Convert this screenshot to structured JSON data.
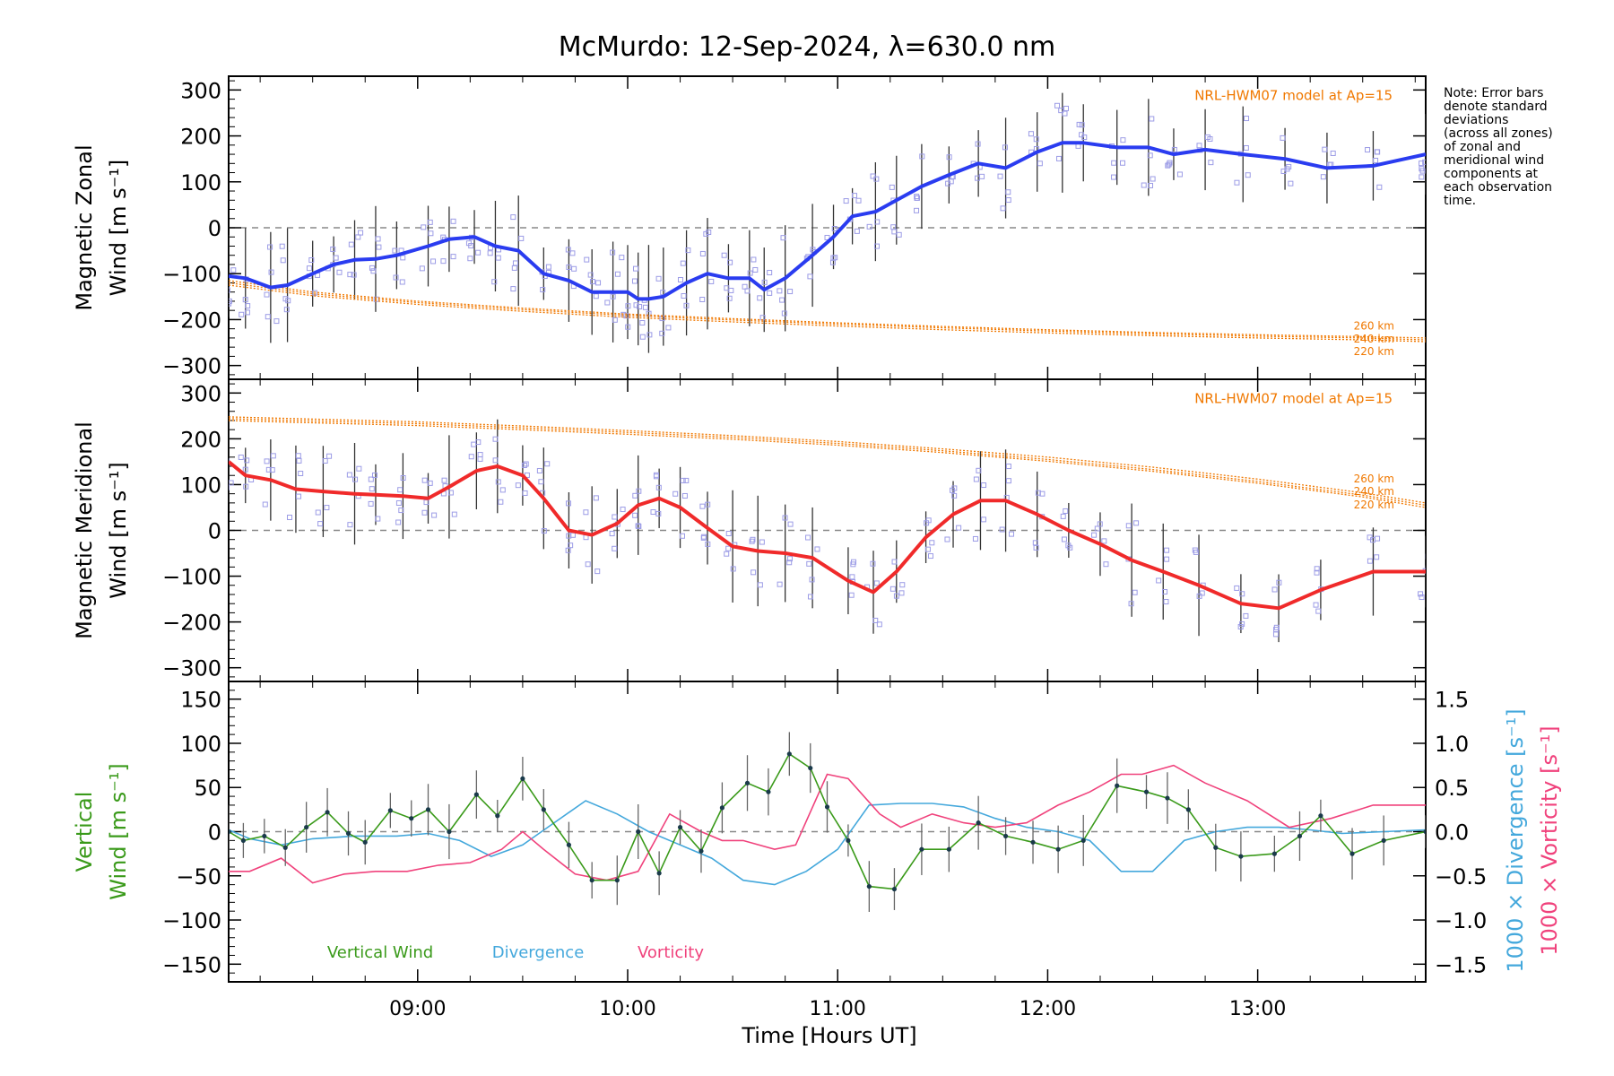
{
  "title": "McMurdo: 12-Sep-2024, λ=630.0 nm",
  "note": [
    "Note: Error bars",
    "denote standard",
    "deviations",
    "(across all zones)",
    "of zonal and",
    "meridional wind",
    "components at",
    "each observation",
    "time."
  ],
  "colors": {
    "zonal": "#2a3cf0",
    "meridional": "#f02a2a",
    "model": "#f07800",
    "vertical": "#3a9a1a",
    "divergence": "#44a8dc",
    "vorticity": "#f0427c",
    "zero_line": "#888888",
    "error_bar": "#333333",
    "zone_points": "#9c9ce6"
  },
  "xaxis": {
    "label": "Time [Hours UT]",
    "range": [
      8.1,
      13.8
    ],
    "ticks": [
      9,
      10,
      11,
      12,
      13
    ],
    "ticklabels": [
      "09:00",
      "10:00",
      "11:00",
      "12:00",
      "13:00"
    ]
  },
  "panels": {
    "zonal": {
      "ylabel": [
        "Magnetic Zonal",
        "Wind [m s⁻¹]"
      ],
      "ylim": [
        -330,
        330
      ],
      "yticks": [
        300,
        200,
        100,
        0,
        -100,
        -200,
        -300
      ],
      "model_label": "NRL-HWM07 model at Ap=15",
      "altitude_labels": [
        "260 km",
        "240 km",
        "220 km"
      ]
    },
    "meridional": {
      "ylabel": [
        "Magnetic Meridional",
        "Wind [m s⁻¹]"
      ],
      "ylim": [
        -330,
        330
      ],
      "yticks": [
        300,
        200,
        100,
        0,
        -100,
        -200,
        -300
      ],
      "model_label": "NRL-HWM07 model at Ap=15",
      "altitude_labels": [
        "260 km",
        "240 km",
        "220 km"
      ]
    },
    "vertical": {
      "ylabel": [
        "Vertical",
        "Wind [m s⁻¹]"
      ],
      "ylim": [
        -170,
        170
      ],
      "yticks": [
        150,
        100,
        50,
        0,
        -50,
        -100,
        -150
      ],
      "right_ylim": [
        -1.7,
        1.7
      ],
      "right_yticks": [
        1.5,
        1.0,
        0.5,
        0.0,
        -0.5,
        -1.0,
        -1.5
      ],
      "right_ylabel_divergence": "1000 × Divergence [s⁻¹]",
      "right_ylabel_vorticity": "1000 × Vorticity [s⁻¹]",
      "legend": [
        "Vertical Wind",
        "Divergence",
        "Vorticity"
      ]
    }
  },
  "chart_data": [
    {
      "type": "line",
      "title": "McMurdo: 12-Sep-2024, λ=630.0 nm",
      "ylabel": "Magnetic Zonal Wind [m s⁻¹]",
      "xlabel": "",
      "ylim": [
        -330,
        330
      ],
      "series": [
        {
          "x": [
            8.1,
            8.18,
            8.3,
            8.38,
            8.5,
            8.6,
            8.7,
            8.8,
            8.9,
            9.05,
            9.15,
            9.27,
            9.37,
            9.48,
            9.6,
            9.72,
            9.83,
            9.93,
            10.0,
            10.05,
            10.1,
            10.17,
            10.28,
            10.38,
            10.48,
            10.58,
            10.65,
            10.75,
            10.88,
            10.98,
            11.07,
            11.18,
            11.28,
            11.4,
            11.53,
            11.67,
            11.8,
            11.95,
            12.07,
            12.17,
            12.33,
            12.48,
            12.6,
            12.75,
            12.93,
            13.13,
            13.33,
            13.55,
            13.8
          ],
          "values": [
            -105,
            -110,
            -130,
            -125,
            -100,
            -80,
            -70,
            -68,
            -60,
            -40,
            -25,
            -20,
            -40,
            -50,
            -100,
            -115,
            -140,
            -140,
            -140,
            -155,
            -155,
            -150,
            -120,
            -100,
            -110,
            -110,
            -135,
            -110,
            -60,
            -20,
            25,
            35,
            60,
            90,
            115,
            140,
            130,
            165,
            185,
            185,
            175,
            175,
            160,
            170,
            160,
            150,
            130,
            135,
            160
          ]
        },
        {
          "name": "260 km",
          "x": [
            8.1,
            8.5,
            9.0,
            9.5,
            10.0,
            10.5,
            11.0,
            11.5,
            12.0,
            12.5,
            13.0,
            13.5,
            13.8
          ],
          "values": [
            -115,
            -140,
            -160,
            -175,
            -188,
            -198,
            -207,
            -215,
            -222,
            -228,
            -233,
            -237,
            -240
          ]
        },
        {
          "name": "240 km",
          "x": [
            8.1,
            8.5,
            9.0,
            9.5,
            10.0,
            10.5,
            11.0,
            11.5,
            12.0,
            12.5,
            13.0,
            13.5,
            13.8
          ],
          "values": [
            -120,
            -144,
            -163,
            -178,
            -191,
            -201,
            -210,
            -218,
            -225,
            -231,
            -236,
            -240,
            -244
          ]
        },
        {
          "name": "220 km",
          "x": [
            8.1,
            8.5,
            9.0,
            9.5,
            10.0,
            10.5,
            11.0,
            11.5,
            12.0,
            12.5,
            13.0,
            13.5,
            13.8
          ],
          "values": [
            -125,
            -148,
            -167,
            -182,
            -195,
            -205,
            -214,
            -222,
            -229,
            -235,
            -240,
            -244,
            -248
          ]
        }
      ]
    },
    {
      "type": "line",
      "title": "",
      "ylabel": "Magnetic Meridional Wind [m s⁻¹]",
      "xlabel": "",
      "ylim": [
        -330,
        330
      ],
      "series": [
        {
          "x": [
            8.1,
            8.18,
            8.3,
            8.42,
            8.55,
            8.7,
            8.8,
            8.93,
            9.05,
            9.15,
            9.28,
            9.38,
            9.5,
            9.6,
            9.72,
            9.83,
            9.95,
            10.05,
            10.15,
            10.25,
            10.38,
            10.5,
            10.62,
            10.75,
            10.88,
            11.05,
            11.17,
            11.28,
            11.42,
            11.55,
            11.68,
            11.8,
            11.95,
            12.1,
            12.25,
            12.4,
            12.55,
            12.72,
            12.92,
            13.1,
            13.3,
            13.55,
            13.8
          ],
          "values": [
            150,
            120,
            110,
            90,
            85,
            80,
            78,
            75,
            70,
            95,
            130,
            140,
            120,
            70,
            0,
            -10,
            15,
            55,
            70,
            50,
            5,
            -35,
            -45,
            -50,
            -60,
            -110,
            -135,
            -90,
            -15,
            35,
            65,
            65,
            35,
            0,
            -30,
            -65,
            -90,
            -120,
            -160,
            -170,
            -130,
            -90,
            -90
          ]
        },
        {
          "name": "260 km",
          "x": [
            8.1,
            8.5,
            9.0,
            9.5,
            10.0,
            10.5,
            11.0,
            11.5,
            12.0,
            12.5,
            13.0,
            13.5,
            13.8
          ],
          "values": [
            248,
            243,
            237,
            228,
            218,
            207,
            194,
            178,
            160,
            138,
            112,
            82,
            60
          ]
        },
        {
          "name": "240 km",
          "x": [
            8.1,
            8.5,
            9.0,
            9.5,
            10.0,
            10.5,
            11.0,
            11.5,
            12.0,
            12.5,
            13.0,
            13.5,
            13.8
          ],
          "values": [
            244,
            239,
            233,
            224,
            214,
            203,
            190,
            174,
            155,
            133,
            107,
            77,
            55
          ]
        },
        {
          "name": "220 km",
          "x": [
            8.1,
            8.5,
            9.0,
            9.5,
            10.0,
            10.5,
            11.0,
            11.5,
            12.0,
            12.5,
            13.0,
            13.5,
            13.8
          ],
          "values": [
            240,
            235,
            229,
            220,
            210,
            199,
            186,
            170,
            151,
            129,
            103,
            73,
            50
          ]
        }
      ]
    },
    {
      "type": "line",
      "title": "",
      "xlabel": "Time [Hours UT]",
      "ylabel": "Vertical Wind [m s⁻¹]",
      "ylim": [
        -170,
        170
      ],
      "series": [
        {
          "name": "Vertical Wind",
          "x": [
            8.1,
            8.17,
            8.27,
            8.37,
            8.47,
            8.57,
            8.67,
            8.75,
            8.87,
            8.97,
            9.05,
            9.15,
            9.28,
            9.38,
            9.5,
            9.6,
            9.72,
            9.83,
            9.95,
            10.05,
            10.15,
            10.25,
            10.35,
            10.45,
            10.57,
            10.67,
            10.77,
            10.87,
            10.95,
            11.05,
            11.15,
            11.27,
            11.4,
            11.53,
            11.67,
            11.8,
            11.93,
            12.05,
            12.17,
            12.33,
            12.47,
            12.57,
            12.67,
            12.8,
            12.92,
            13.08,
            13.2,
            13.3,
            13.45,
            13.6,
            13.8
          ],
          "values": [
            0,
            -10,
            -5,
            -18,
            5,
            22,
            -2,
            -12,
            24,
            15,
            25,
            0,
            42,
            18,
            60,
            25,
            -15,
            -55,
            -55,
            0,
            -47,
            5,
            -22,
            27,
            55,
            45,
            88,
            72,
            28,
            -10,
            -62,
            -65,
            -20,
            -20,
            10,
            -5,
            -12,
            -20,
            -10,
            52,
            45,
            38,
            25,
            -18,
            -28,
            -25,
            -5,
            18,
            -25,
            -10,
            0
          ]
        },
        {
          "name": "Divergence",
          "x": [
            8.1,
            8.2,
            8.35,
            8.5,
            8.7,
            8.9,
            9.05,
            9.2,
            9.35,
            9.5,
            9.65,
            9.8,
            9.95,
            10.1,
            10.25,
            10.4,
            10.55,
            10.7,
            10.85,
            11.0,
            11.15,
            11.3,
            11.45,
            11.6,
            11.75,
            11.9,
            12.05,
            12.2,
            12.35,
            12.5,
            12.65,
            12.8,
            12.95,
            13.1,
            13.25,
            13.4,
            13.6,
            13.8
          ],
          "values": [
            0.02,
            -0.08,
            -0.15,
            -0.08,
            -0.05,
            -0.05,
            -0.02,
            -0.1,
            -0.28,
            -0.15,
            0.1,
            0.35,
            0.2,
            0.0,
            -0.15,
            -0.3,
            -0.55,
            -0.6,
            -0.45,
            -0.2,
            0.3,
            0.32,
            0.32,
            0.28,
            0.15,
            0.05,
            0.0,
            -0.1,
            -0.45,
            -0.45,
            -0.1,
            -0.0,
            0.05,
            0.05,
            0.02,
            -0.02,
            0.0,
            0.02
          ]
        },
        {
          "name": "Vorticity",
          "x": [
            8.1,
            8.2,
            8.35,
            8.5,
            8.65,
            8.8,
            8.95,
            9.1,
            9.25,
            9.4,
            9.5,
            9.6,
            9.75,
            9.9,
            10.05,
            10.2,
            10.35,
            10.45,
            10.55,
            10.7,
            10.8,
            10.95,
            11.05,
            11.2,
            11.3,
            11.45,
            11.6,
            11.75,
            11.9,
            12.05,
            12.2,
            12.35,
            12.45,
            12.6,
            12.75,
            12.95,
            13.15,
            13.35,
            13.55,
            13.8
          ],
          "values": [
            -0.45,
            -0.45,
            -0.3,
            -0.58,
            -0.48,
            -0.45,
            -0.45,
            -0.38,
            -0.35,
            -0.2,
            0.0,
            -0.2,
            -0.48,
            -0.55,
            -0.45,
            0.2,
            0.0,
            -0.1,
            -0.1,
            -0.2,
            -0.15,
            0.65,
            0.6,
            0.2,
            0.05,
            0.2,
            0.1,
            0.05,
            0.1,
            0.3,
            0.45,
            0.65,
            0.65,
            0.75,
            0.55,
            0.35,
            0.05,
            0.15,
            0.3,
            0.3
          ]
        }
      ]
    }
  ]
}
